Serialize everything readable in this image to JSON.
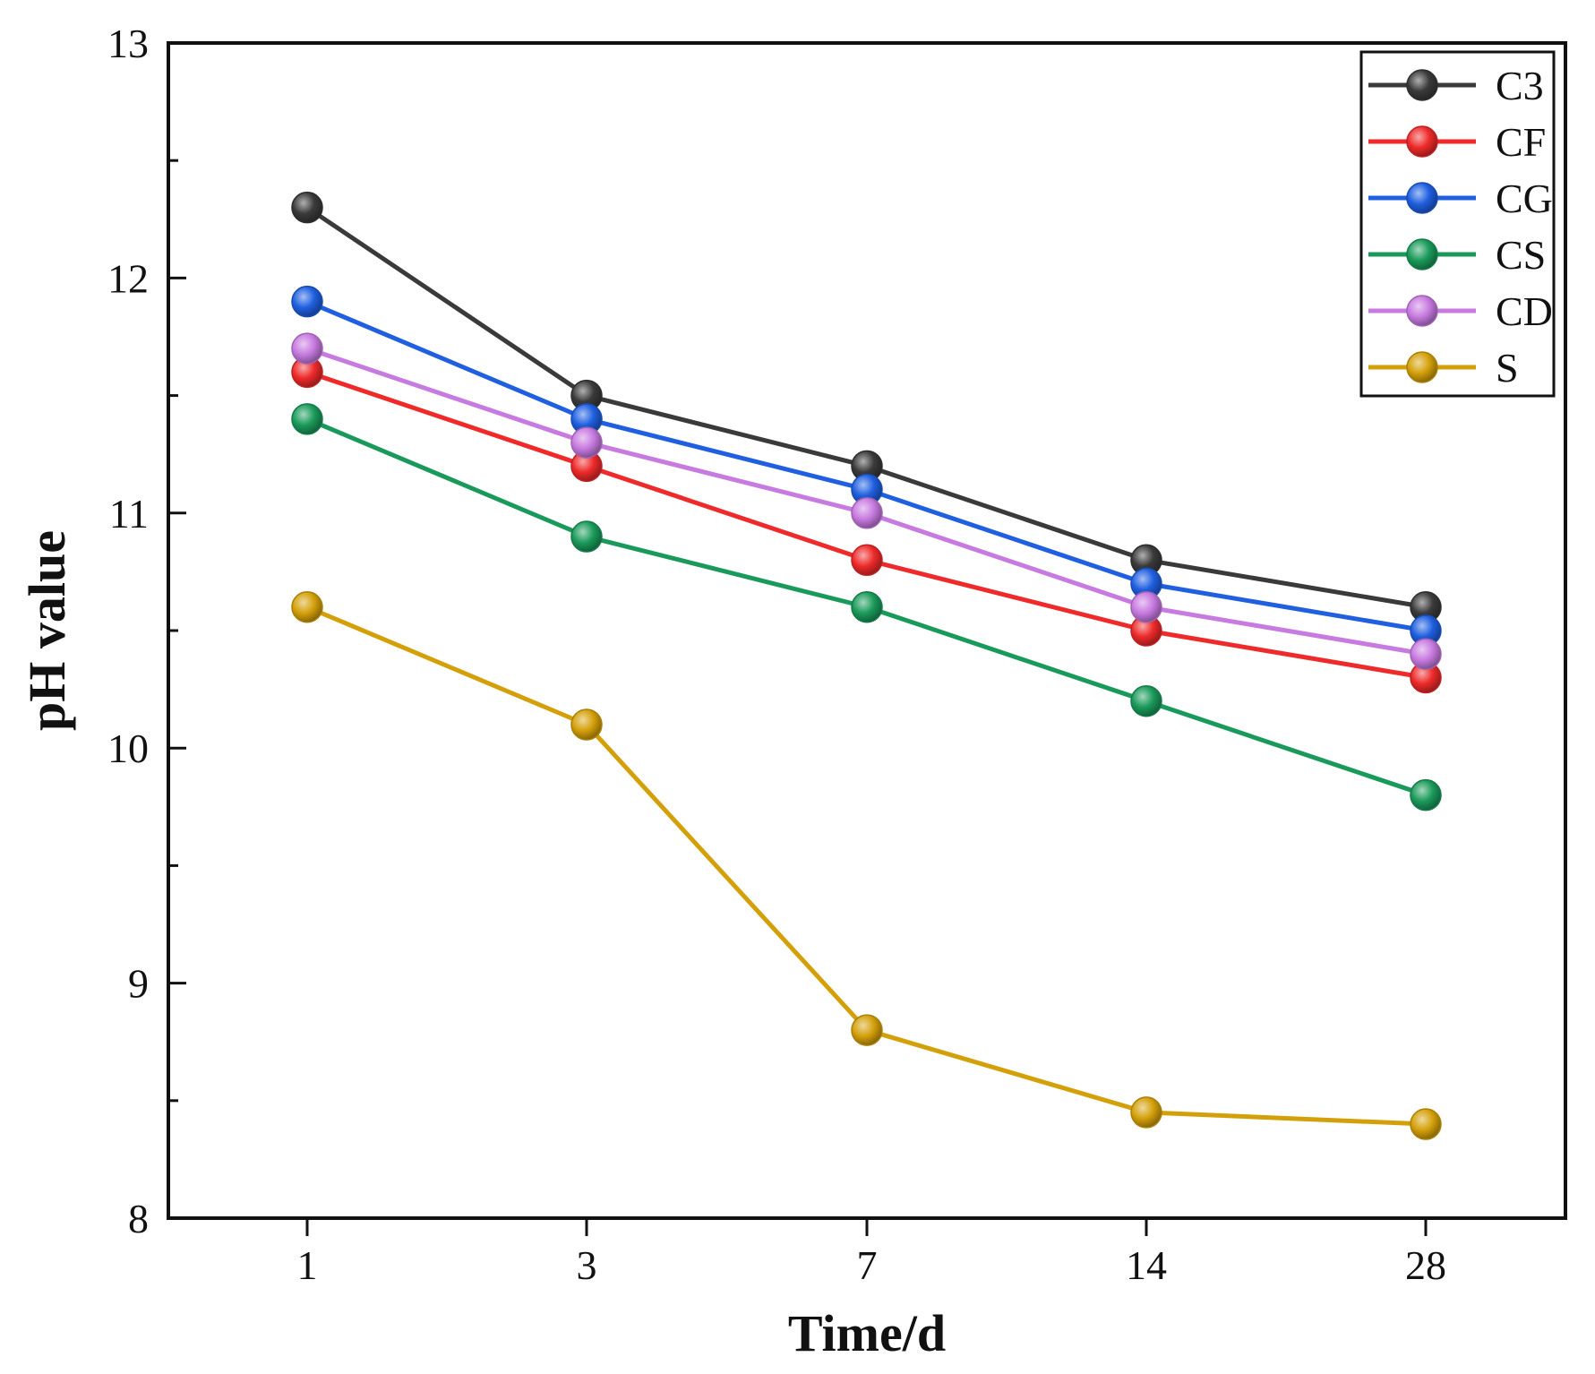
{
  "chart_data": {
    "type": "line",
    "xlabel": "Time/d",
    "ylabel": "pH value",
    "categories": [
      "1",
      "3",
      "7",
      "14",
      "28"
    ],
    "ylim": [
      8,
      13
    ],
    "yticks": [
      "8",
      "9",
      "10",
      "11",
      "12",
      "13"
    ],
    "grid": false,
    "legend_position": "top-right",
    "series": [
      {
        "name": "C3",
        "color": "#3a3a3a",
        "values": [
          12.3,
          11.5,
          11.2,
          10.8,
          10.6
        ]
      },
      {
        "name": "CF",
        "color": "#ee2a2a",
        "values": [
          11.6,
          11.2,
          10.8,
          10.5,
          10.3
        ]
      },
      {
        "name": "CG",
        "color": "#1f5fe0",
        "values": [
          11.9,
          11.4,
          11.1,
          10.7,
          10.5
        ]
      },
      {
        "name": "CS",
        "color": "#1a9a5a",
        "values": [
          11.4,
          10.9,
          10.6,
          10.2,
          9.8
        ]
      },
      {
        "name": "CD",
        "color": "#c77ae0",
        "values": [
          11.7,
          11.3,
          11.0,
          10.6,
          10.4
        ]
      },
      {
        "name": "S",
        "color": "#d4a00a",
        "values": [
          10.6,
          10.1,
          8.8,
          8.45,
          8.4
        ]
      }
    ]
  }
}
